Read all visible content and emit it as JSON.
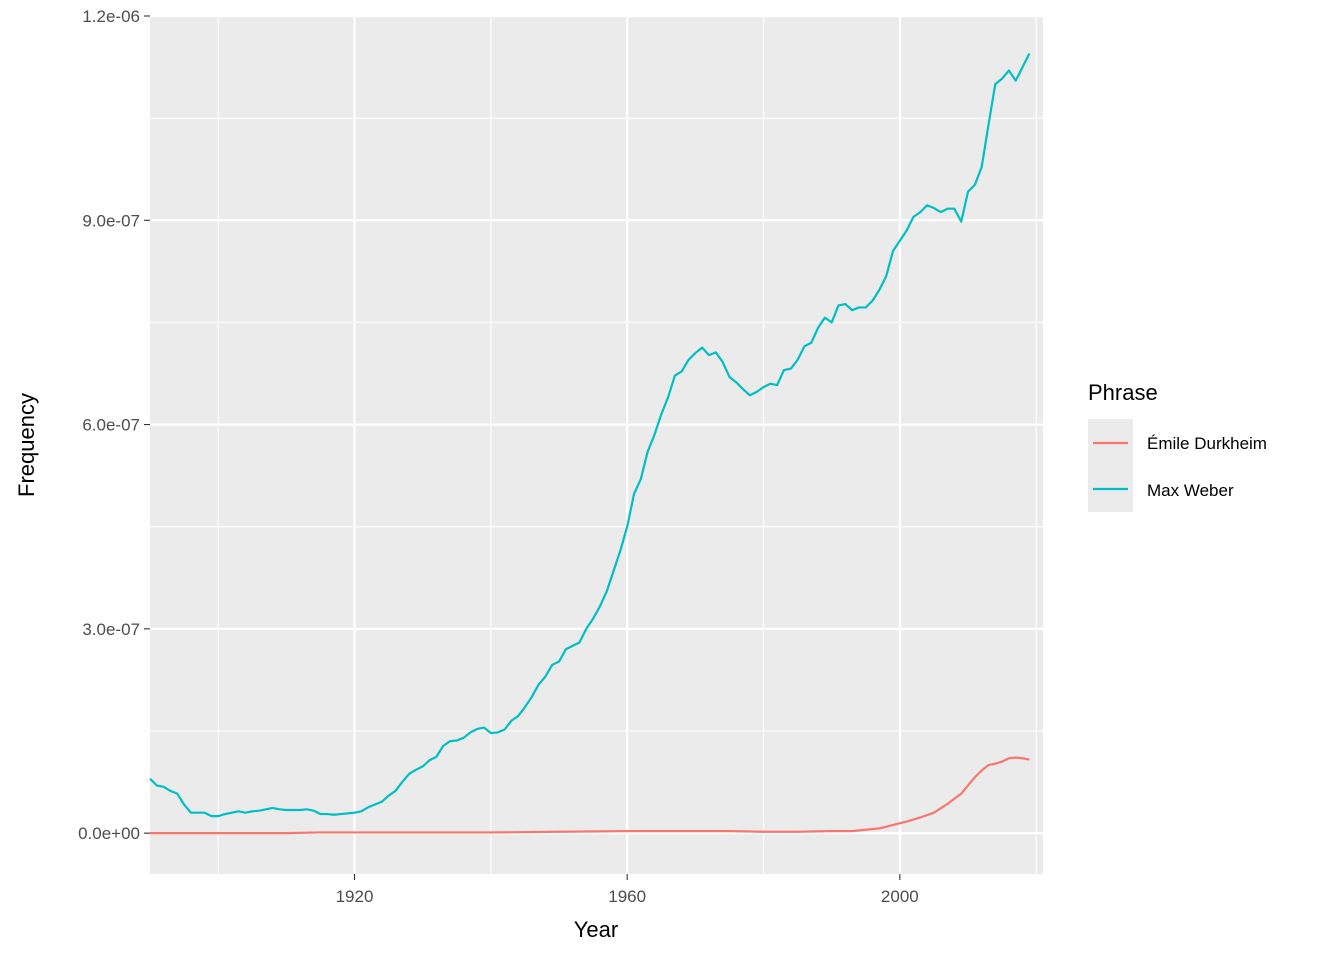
{
  "chart_data": {
    "type": "line",
    "xlabel": "Year",
    "ylabel": "Frequency",
    "xlim": [
      1890,
      2021
    ],
    "ylim": [
      -6e-08,
      1.2e-06
    ],
    "x_ticks": [
      1920,
      1960,
      2000
    ],
    "x_tick_labels": [
      "1920",
      "1960",
      "2000"
    ],
    "x_minor_ticks": [
      1900,
      1940,
      1980,
      2020
    ],
    "y_ticks": [
      0,
      3e-07,
      6e-07,
      9e-07,
      1.2e-06
    ],
    "y_tick_labels": [
      "0.0e+00",
      "3.0e-07",
      "6.0e-07",
      "9.0e-07",
      "1.2e-06"
    ],
    "y_minor_ticks": [
      1.5e-07,
      4.5e-07,
      7.5e-07,
      1.05e-06
    ],
    "grid": true,
    "legend": {
      "title": "Phrase",
      "position": "right"
    },
    "series": [
      {
        "name": "Émile Durkheim",
        "color": "#F8766D",
        "points": [
          [
            1890,
            0
          ],
          [
            1900,
            0
          ],
          [
            1910,
            0
          ],
          [
            1915,
            1e-09
          ],
          [
            1920,
            1e-09
          ],
          [
            1930,
            1e-09
          ],
          [
            1940,
            1e-09
          ],
          [
            1950,
            2e-09
          ],
          [
            1960,
            3e-09
          ],
          [
            1970,
            3e-09
          ],
          [
            1975,
            3e-09
          ],
          [
            1980,
            2e-09
          ],
          [
            1985,
            2e-09
          ],
          [
            1990,
            3e-09
          ],
          [
            1993,
            3e-09
          ],
          [
            1995,
            5e-09
          ],
          [
            1997,
            7e-09
          ],
          [
            1999,
            1.2e-08
          ],
          [
            2001,
            1.7e-08
          ],
          [
            2003,
            2.3e-08
          ],
          [
            2005,
            3e-08
          ],
          [
            2007,
            4.3e-08
          ],
          [
            2009,
            5.8e-08
          ],
          [
            2010,
            7e-08
          ],
          [
            2011,
            8.2e-08
          ],
          [
            2012,
            9.2e-08
          ],
          [
            2013,
            1e-07
          ],
          [
            2014,
            1.02e-07
          ],
          [
            2015,
            1.05e-07
          ],
          [
            2016,
            1.1e-07
          ],
          [
            2017,
            1.11e-07
          ],
          [
            2018,
            1.1e-07
          ],
          [
            2019,
            1.08e-07
          ]
        ]
      },
      {
        "name": "Max Weber",
        "color": "#00BFC4",
        "points": [
          [
            1890,
            8e-08
          ],
          [
            1891,
            7e-08
          ],
          [
            1892,
            6.8e-08
          ],
          [
            1893,
            6.2e-08
          ],
          [
            1894,
            5.8e-08
          ],
          [
            1895,
            4.2e-08
          ],
          [
            1896,
            3e-08
          ],
          [
            1897,
            3e-08
          ],
          [
            1898,
            3e-08
          ],
          [
            1899,
            2.5e-08
          ],
          [
            1900,
            2.5e-08
          ],
          [
            1901,
            2.8e-08
          ],
          [
            1902,
            3e-08
          ],
          [
            1903,
            3.2e-08
          ],
          [
            1904,
            3e-08
          ],
          [
            1905,
            3.2e-08
          ],
          [
            1906,
            3.3e-08
          ],
          [
            1907,
            3.5e-08
          ],
          [
            1908,
            3.7e-08
          ],
          [
            1909,
            3.5e-08
          ],
          [
            1910,
            3.4e-08
          ],
          [
            1911,
            3.4e-08
          ],
          [
            1912,
            3.4e-08
          ],
          [
            1913,
            3.5e-08
          ],
          [
            1914,
            3.3e-08
          ],
          [
            1915,
            2.8e-08
          ],
          [
            1916,
            2.8e-08
          ],
          [
            1917,
            2.7e-08
          ],
          [
            1918,
            2.8e-08
          ],
          [
            1919,
            2.9e-08
          ],
          [
            1920,
            3e-08
          ],
          [
            1921,
            3.2e-08
          ],
          [
            1922,
            3.8e-08
          ],
          [
            1923,
            4.2e-08
          ],
          [
            1924,
            4.6e-08
          ],
          [
            1925,
            5.5e-08
          ],
          [
            1926,
            6.2e-08
          ],
          [
            1927,
            7.5e-08
          ],
          [
            1928,
            8.7e-08
          ],
          [
            1929,
            9.3e-08
          ],
          [
            1930,
            9.8e-08
          ],
          [
            1931,
            1.07e-07
          ],
          [
            1932,
            1.12e-07
          ],
          [
            1933,
            1.28e-07
          ],
          [
            1934,
            1.35e-07
          ],
          [
            1935,
            1.36e-07
          ],
          [
            1936,
            1.4e-07
          ],
          [
            1937,
            1.48e-07
          ],
          [
            1938,
            1.53e-07
          ],
          [
            1939,
            1.55e-07
          ],
          [
            1940,
            1.47e-07
          ],
          [
            1941,
            1.48e-07
          ],
          [
            1942,
            1.52e-07
          ],
          [
            1943,
            1.65e-07
          ],
          [
            1944,
            1.72e-07
          ],
          [
            1945,
            1.85e-07
          ],
          [
            1946,
            2e-07
          ],
          [
            1947,
            2.18e-07
          ],
          [
            1948,
            2.3e-07
          ],
          [
            1949,
            2.47e-07
          ],
          [
            1950,
            2.52e-07
          ],
          [
            1951,
            2.7e-07
          ],
          [
            1952,
            2.75e-07
          ],
          [
            1953,
            2.8e-07
          ],
          [
            1954,
            3e-07
          ],
          [
            1955,
            3.15e-07
          ],
          [
            1956,
            3.33e-07
          ],
          [
            1957,
            3.55e-07
          ],
          [
            1958,
            3.85e-07
          ],
          [
            1959,
            4.15e-07
          ],
          [
            1960,
            4.5e-07
          ],
          [
            1961,
            4.98e-07
          ],
          [
            1962,
            5.2e-07
          ],
          [
            1963,
            5.6e-07
          ],
          [
            1964,
            5.85e-07
          ],
          [
            1965,
            6.15e-07
          ],
          [
            1966,
            6.4e-07
          ],
          [
            1967,
            6.72e-07
          ],
          [
            1968,
            6.78e-07
          ],
          [
            1969,
            6.95e-07
          ],
          [
            1970,
            7.05e-07
          ],
          [
            1971,
            7.13e-07
          ],
          [
            1972,
            7.02e-07
          ],
          [
            1973,
            7.06e-07
          ],
          [
            1974,
            6.92e-07
          ],
          [
            1975,
            6.7e-07
          ],
          [
            1976,
            6.62e-07
          ],
          [
            1977,
            6.52e-07
          ],
          [
            1978,
            6.43e-07
          ],
          [
            1979,
            6.48e-07
          ],
          [
            1980,
            6.55e-07
          ],
          [
            1981,
            6.6e-07
          ],
          [
            1982,
            6.58e-07
          ],
          [
            1983,
            6.8e-07
          ],
          [
            1984,
            6.82e-07
          ],
          [
            1985,
            6.95e-07
          ],
          [
            1986,
            7.15e-07
          ],
          [
            1987,
            7.2e-07
          ],
          [
            1988,
            7.42e-07
          ],
          [
            1989,
            7.57e-07
          ],
          [
            1990,
            7.5e-07
          ],
          [
            1991,
            7.75e-07
          ],
          [
            1992,
            7.77e-07
          ],
          [
            1993,
            7.68e-07
          ],
          [
            1994,
            7.72e-07
          ],
          [
            1995,
            7.72e-07
          ],
          [
            1996,
            7.82e-07
          ],
          [
            1997,
            7.98e-07
          ],
          [
            1998,
            8.18e-07
          ],
          [
            1999,
            8.55e-07
          ],
          [
            2000,
            8.7e-07
          ],
          [
            2001,
            8.85e-07
          ],
          [
            2002,
            9.05e-07
          ],
          [
            2003,
            9.12e-07
          ],
          [
            2004,
            9.22e-07
          ],
          [
            2005,
            9.18e-07
          ],
          [
            2006,
            9.12e-07
          ],
          [
            2007,
            9.17e-07
          ],
          [
            2008,
            9.17e-07
          ],
          [
            2009,
            8.98e-07
          ],
          [
            2010,
            9.42e-07
          ],
          [
            2011,
            9.52e-07
          ],
          [
            2012,
            9.78e-07
          ],
          [
            2013,
            1.04e-06
          ],
          [
            2014,
            1.1e-06
          ],
          [
            2015,
            1.108e-06
          ],
          [
            2016,
            1.12e-06
          ],
          [
            2017,
            1.105e-06
          ],
          [
            2018,
            1.125e-06
          ],
          [
            2019,
            1.145e-06
          ]
        ]
      }
    ]
  }
}
